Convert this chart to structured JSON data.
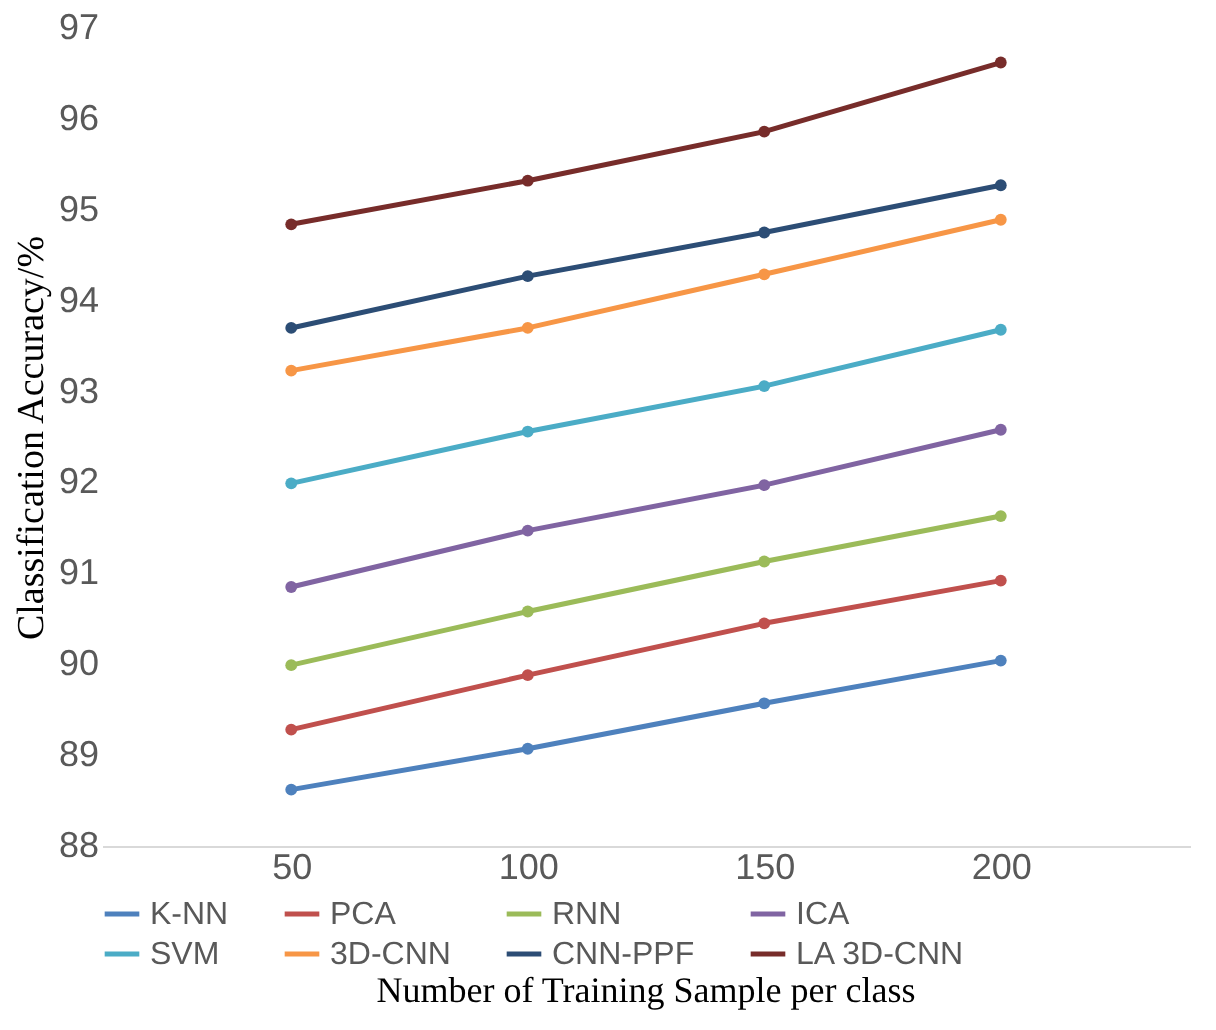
{
  "chart_data": {
    "type": "line",
    "xlabel": "Number of Training Sample per class",
    "ylabel": "Classification Accuracy/%",
    "categories": [
      "50",
      "100",
      "150",
      "200"
    ],
    "ylim": [
      88,
      97
    ],
    "yticks": [
      88,
      89,
      90,
      91,
      92,
      93,
      94,
      95,
      96,
      97
    ],
    "grid": false,
    "legend": "bottom",
    "marker": "circle",
    "line_style": "solid",
    "series": [
      {
        "name": "K-NN",
        "color": "#4e81bd",
        "values": [
          88.62,
          89.07,
          89.57,
          90.04
        ]
      },
      {
        "name": "PCA",
        "color": "#c0504d",
        "values": [
          89.28,
          89.88,
          90.45,
          90.92
        ]
      },
      {
        "name": "RNN",
        "color": "#9bbb59",
        "values": [
          89.99,
          90.58,
          91.13,
          91.63
        ]
      },
      {
        "name": "ICA",
        "color": "#8064a2",
        "values": [
          90.85,
          91.47,
          91.97,
          92.58
        ]
      },
      {
        "name": "SVM",
        "color": "#4bacc6",
        "values": [
          91.99,
          92.56,
          93.06,
          93.68
        ]
      },
      {
        "name": "3D-CNN",
        "color": "#f79646",
        "values": [
          93.23,
          93.7,
          94.29,
          94.89
        ]
      },
      {
        "name": "CNN-PPF",
        "color": "#2c4d75",
        "values": [
          93.7,
          94.27,
          94.75,
          95.27
        ]
      },
      {
        "name": "LA 3D-CNN",
        "color": "#772c2a",
        "values": [
          94.84,
          95.32,
          95.86,
          96.62
        ]
      }
    ]
  }
}
